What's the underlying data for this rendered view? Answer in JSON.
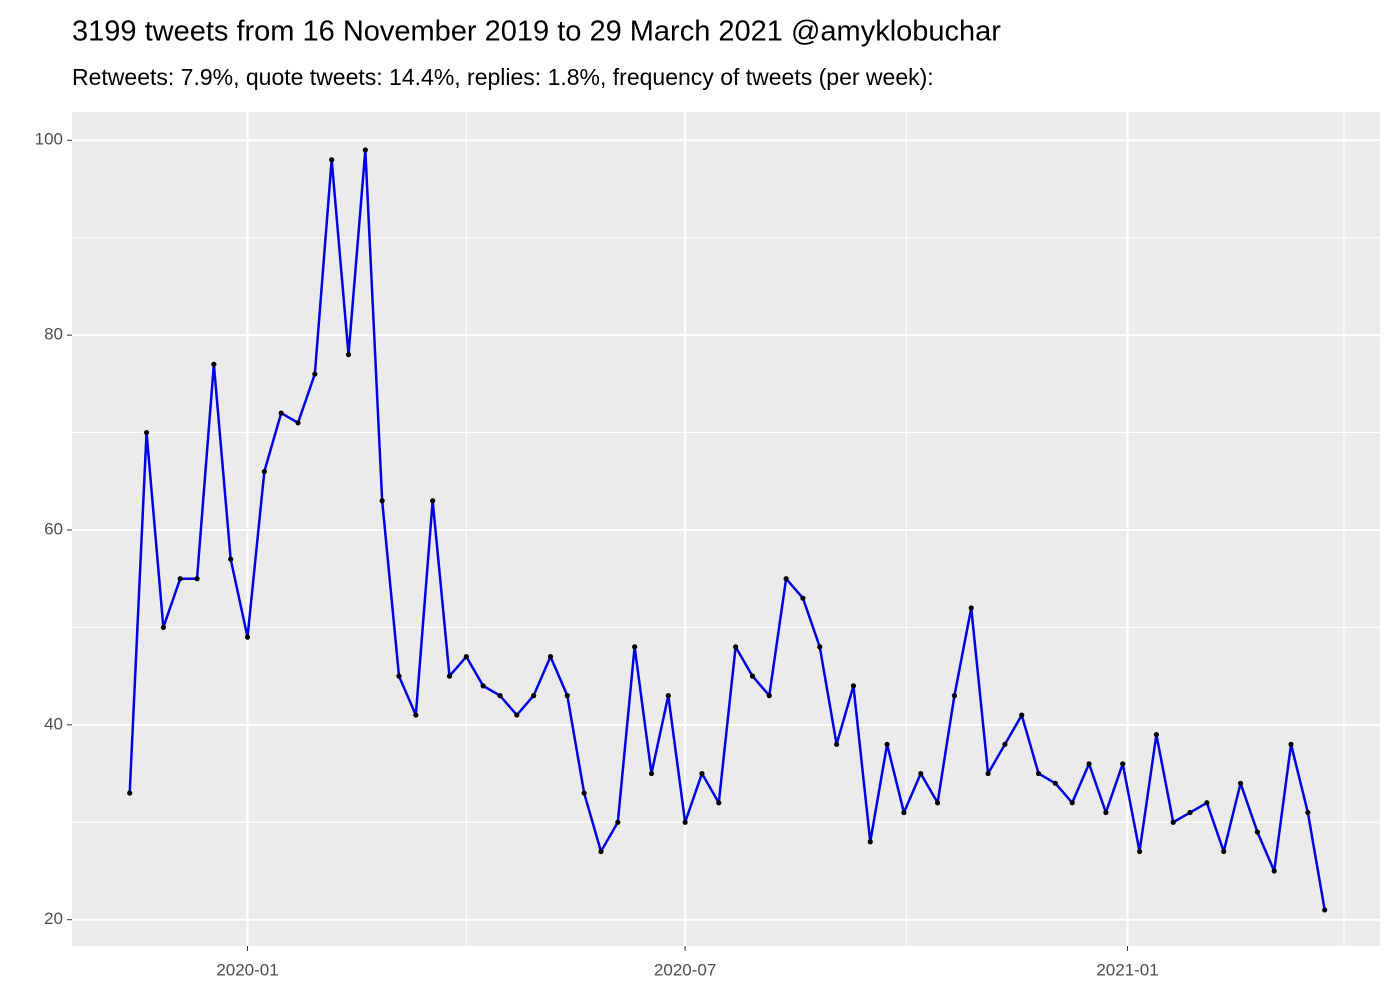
{
  "chart_data": {
    "type": "line",
    "title": "3199 tweets from 16 November 2019 to 29 March 2021 @amyklobuchar",
    "subtitle": "Retweets: 7.9%, quote tweets: 14.4%, replies: 1.8%, frequency of tweets (per week):",
    "x": [
      "2019-11-13",
      "2019-11-20",
      "2019-11-27",
      "2019-12-04",
      "2019-12-11",
      "2019-12-18",
      "2019-12-25",
      "2020-01-01",
      "2020-01-08",
      "2020-01-15",
      "2020-01-22",
      "2020-01-29",
      "2020-02-05",
      "2020-02-12",
      "2020-02-19",
      "2020-02-26",
      "2020-03-04",
      "2020-03-11",
      "2020-03-18",
      "2020-03-25",
      "2020-04-01",
      "2020-04-08",
      "2020-04-15",
      "2020-04-22",
      "2020-04-29",
      "2020-05-06",
      "2020-05-13",
      "2020-05-20",
      "2020-05-27",
      "2020-06-03",
      "2020-06-10",
      "2020-06-17",
      "2020-06-24",
      "2020-07-01",
      "2020-07-08",
      "2020-07-15",
      "2020-07-22",
      "2020-07-29",
      "2020-08-05",
      "2020-08-12",
      "2020-08-19",
      "2020-08-26",
      "2020-09-02",
      "2020-09-09",
      "2020-09-16",
      "2020-09-23",
      "2020-09-30",
      "2020-10-07",
      "2020-10-14",
      "2020-10-21",
      "2020-10-28",
      "2020-11-04",
      "2020-11-11",
      "2020-11-18",
      "2020-11-25",
      "2020-12-02",
      "2020-12-09",
      "2020-12-16",
      "2020-12-23",
      "2020-12-30",
      "2021-01-06",
      "2021-01-13",
      "2021-01-20",
      "2021-01-27",
      "2021-02-03",
      "2021-02-10",
      "2021-02-17",
      "2021-02-24",
      "2021-03-03",
      "2021-03-10",
      "2021-03-17",
      "2021-03-24"
    ],
    "series": [
      {
        "color": "#0000e6",
        "point_color": "#000000",
        "values": [
          33,
          70,
          50,
          55,
          55,
          77,
          57,
          49,
          66,
          72,
          71,
          76,
          98,
          78,
          99,
          63,
          45,
          41,
          63,
          45,
          47,
          44,
          43,
          41,
          43,
          47,
          43,
          33,
          27,
          30,
          48,
          35,
          43,
          30,
          35,
          32,
          48,
          45,
          43,
          55,
          53,
          48,
          38,
          44,
          28,
          38,
          31,
          35,
          32,
          43,
          52,
          35,
          38,
          41,
          35,
          34,
          32,
          36,
          31,
          36,
          27,
          39,
          30,
          31,
          32,
          27,
          34,
          29,
          25,
          38,
          31,
          21
        ]
      }
    ],
    "xlim": [
      "2019-10-20",
      "2021-04-16"
    ],
    "xticks": [
      "2020-01",
      "2020-07",
      "2021-01"
    ],
    "xminorticks": [
      "2020-04",
      "2020-10",
      "2021-04"
    ],
    "ylim": [
      17.3,
      102.9
    ],
    "yticks": [
      20,
      40,
      60,
      80,
      100
    ],
    "yminorticks": [
      30,
      50,
      70,
      90
    ],
    "grid": true
  }
}
